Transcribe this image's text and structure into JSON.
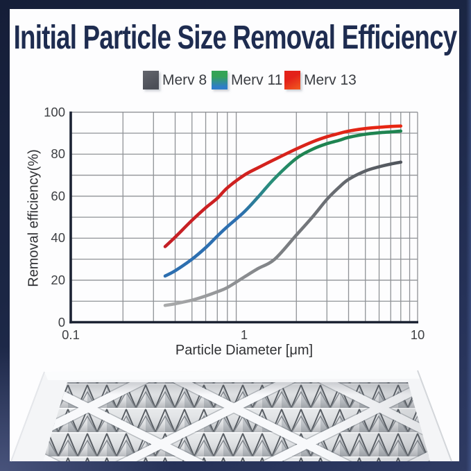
{
  "title": {
    "text": "Initial Particle Size Removal Efficiency",
    "color": "#1e2c50"
  },
  "legend": {
    "items": [
      {
        "label": "Merv 8",
        "swatch_top": "#64666d",
        "swatch_bottom": "#4c4f57"
      },
      {
        "label": "Merv 11",
        "swatch_top": "#34a356",
        "swatch_bottom": "#2f7dc8"
      },
      {
        "label": "Merv 13",
        "swatch_top": "#e32119",
        "swatch_bottom": "#f0571f"
      }
    ]
  },
  "chart_data": {
    "type": "line",
    "xscale": "log",
    "xlim": [
      0.1,
      10
    ],
    "ylim": [
      0,
      100
    ],
    "grid": true,
    "xlabel": "Particle Diameter [μm]",
    "ylabel": "Removal efficiency(%)",
    "x_ticks": [
      {
        "value": 0.1,
        "label": "0.1"
      },
      {
        "value": 1,
        "label": "1"
      },
      {
        "value": 10,
        "label": "10"
      }
    ],
    "y_ticks": [
      {
        "value": 0,
        "label": "0"
      },
      {
        "value": 20,
        "label": "20"
      },
      {
        "value": 40,
        "label": "40"
      },
      {
        "value": 60,
        "label": "60"
      },
      {
        "value": 80,
        "label": "80"
      },
      {
        "value": 100,
        "label": "100"
      }
    ],
    "x": [
      0.35,
      0.4,
      0.5,
      0.6,
      0.7,
      0.8,
      1.0,
      1.2,
      1.5,
      2.0,
      2.5,
      3.0,
      3.5,
      4.0,
      5.0,
      6.0,
      7.0,
      8.0
    ],
    "series": [
      {
        "name": "Merv 8",
        "color_start": "#a9aaab",
        "color_end": "#4f545b",
        "values": [
          8,
          8.8,
          10.5,
          12.5,
          14.5,
          16.5,
          21.5,
          25.5,
          30,
          41.5,
          50.5,
          58.5,
          64,
          68,
          72,
          74,
          75.3,
          76.2
        ]
      },
      {
        "name": "Merv 11",
        "color_start": "#2d6fb0",
        "color_mid": "#2a8f7a",
        "color_end": "#1f8451",
        "values": [
          22,
          24.5,
          30,
          35.5,
          41,
          45.5,
          52.5,
          59.5,
          68.5,
          78,
          82.5,
          85,
          86.5,
          88,
          89.5,
          90.2,
          90.6,
          91
        ]
      },
      {
        "name": "Merv 13",
        "color_start": "#c41f26",
        "color_end": "#e92712",
        "values": [
          36,
          40.5,
          48.5,
          54.5,
          59,
          64,
          70,
          73.5,
          77.5,
          82.5,
          86,
          88.3,
          89.8,
          91,
          92.2,
          92.8,
          93.2,
          93.4
        ]
      }
    ]
  },
  "filter_photo": {
    "description": "pleated air filter with white diamond lattice"
  }
}
